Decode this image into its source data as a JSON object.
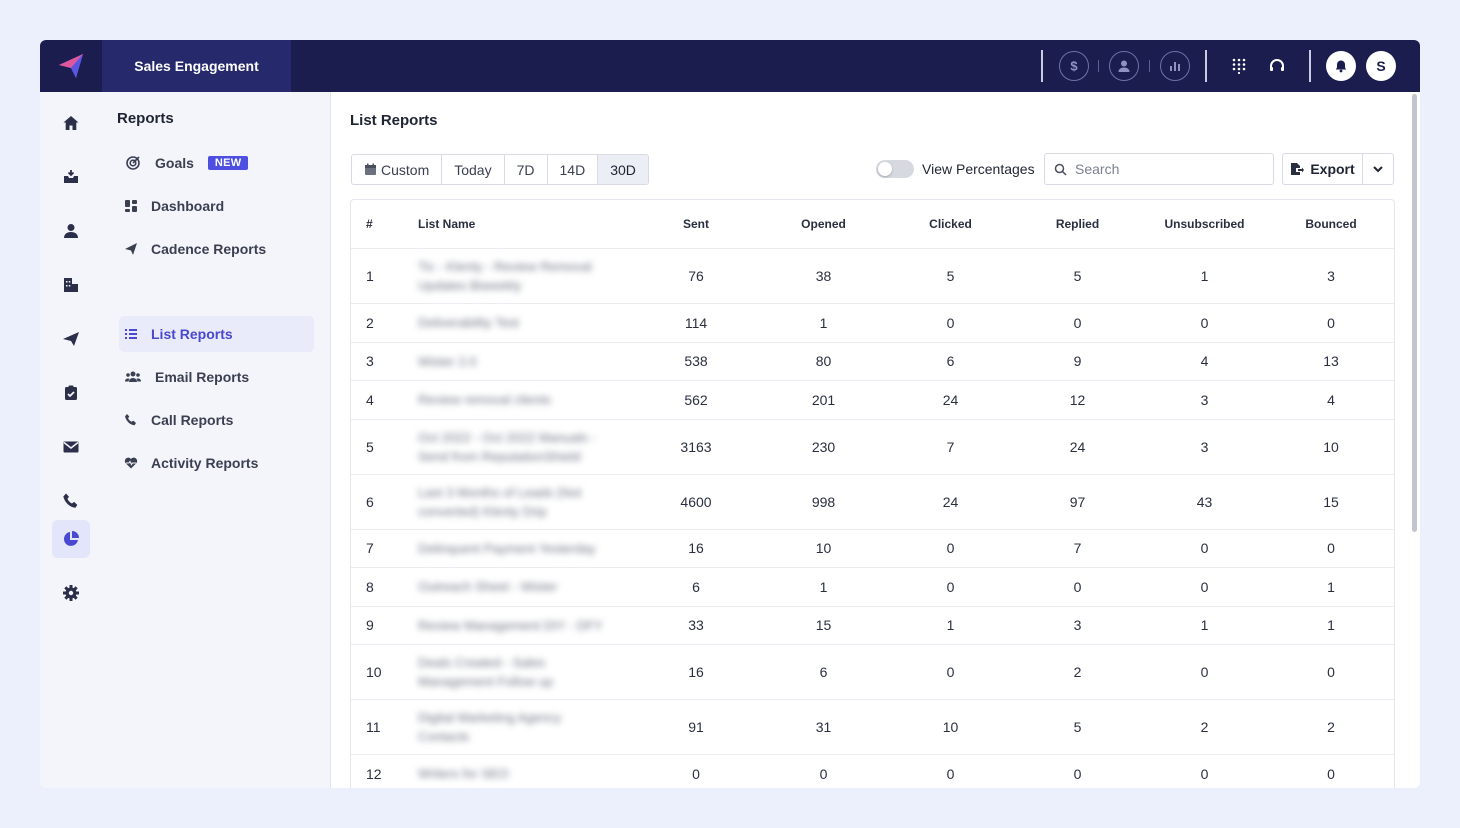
{
  "topbar": {
    "product_name": "Sales Engagement",
    "avatar_initial": "S",
    "icons": [
      "billing-icon",
      "account-icon",
      "analytics-icon",
      "dialpad-icon",
      "support-icon",
      "notifications-icon"
    ]
  },
  "rail": {
    "items": [
      "home-icon",
      "inbox-icon",
      "contacts-icon",
      "accounts-icon",
      "campaigns-icon",
      "tasks-icon",
      "email-icon",
      "calls-icon",
      "reports-icon",
      "settings-icon"
    ],
    "active": "reports-icon"
  },
  "subnav": {
    "title": "Reports",
    "items": [
      {
        "label": "Goals",
        "badge": "NEW",
        "icon": "target-icon"
      },
      {
        "label": "Dashboard",
        "icon": "dashboard-icon"
      },
      {
        "label": "Cadence Reports",
        "icon": "paper-plane-icon"
      },
      {
        "label": "List Reports",
        "icon": "list-icon",
        "active": true
      },
      {
        "label": "Email Reports",
        "icon": "users-icon"
      },
      {
        "label": "Call Reports",
        "icon": "phone-icon"
      },
      {
        "label": "Activity Reports",
        "icon": "heart-pulse-icon"
      }
    ]
  },
  "main": {
    "title": "List Reports",
    "range_buttons": [
      "Custom",
      "Today",
      "7D",
      "14D",
      "30D"
    ],
    "active_range": "30D",
    "toggle_label": "View Percentages",
    "toggle_on": false,
    "search_placeholder": "Search",
    "export_label": "Export"
  },
  "table": {
    "columns": [
      "#",
      "List Name",
      "Sent",
      "Opened",
      "Clicked",
      "Replied",
      "Unsubscribed",
      "Bounced"
    ],
    "rows": [
      {
        "idx": "1",
        "name": [
          "Tic - Klenty - Review Removal",
          "Updates Biweekly"
        ],
        "sent": "76",
        "opened": "38",
        "clicked": "5",
        "replied": "5",
        "unsubscribed": "1",
        "bounced": "3"
      },
      {
        "idx": "2",
        "name": [
          "Deliverability Test"
        ],
        "sent": "114",
        "opened": "1",
        "clicked": "0",
        "replied": "0",
        "unsubscribed": "0",
        "bounced": "0"
      },
      {
        "idx": "3",
        "name": [
          "Wister 2.0"
        ],
        "sent": "538",
        "opened": "80",
        "clicked": "6",
        "replied": "9",
        "unsubscribed": "4",
        "bounced": "13"
      },
      {
        "idx": "4",
        "name": [
          "Review removal clients"
        ],
        "sent": "562",
        "opened": "201",
        "clicked": "24",
        "replied": "12",
        "unsubscribed": "3",
        "bounced": "4"
      },
      {
        "idx": "5",
        "name": [
          "Oct 2022 - Oct 2022 Manuals -",
          "Send from ReputationShield"
        ],
        "sent": "3163",
        "opened": "230",
        "clicked": "7",
        "replied": "24",
        "unsubscribed": "3",
        "bounced": "10"
      },
      {
        "idx": "6",
        "name": [
          "Last 3 Months of Leads (Not",
          "converted) Klenty Drip"
        ],
        "sent": "4600",
        "opened": "998",
        "clicked": "24",
        "replied": "97",
        "unsubscribed": "43",
        "bounced": "15"
      },
      {
        "idx": "7",
        "name": [
          "Delinquent Payment Yesterday"
        ],
        "sent": "16",
        "opened": "10",
        "clicked": "0",
        "replied": "7",
        "unsubscribed": "0",
        "bounced": "0"
      },
      {
        "idx": "8",
        "name": [
          "Outreach Sheet - Wister"
        ],
        "sent": "6",
        "opened": "1",
        "clicked": "0",
        "replied": "0",
        "unsubscribed": "0",
        "bounced": "1"
      },
      {
        "idx": "9",
        "name": [
          "Review Management DIY - DFY"
        ],
        "sent": "33",
        "opened": "15",
        "clicked": "1",
        "replied": "3",
        "unsubscribed": "1",
        "bounced": "1"
      },
      {
        "idx": "10",
        "name": [
          "Deals Created - Sales",
          "Management Follow up"
        ],
        "sent": "16",
        "opened": "6",
        "clicked": "0",
        "replied": "2",
        "unsubscribed": "0",
        "bounced": "0"
      },
      {
        "idx": "11",
        "name": [
          "Digital Marketing Agency",
          "Contacts"
        ],
        "sent": "91",
        "opened": "31",
        "clicked": "10",
        "replied": "5",
        "unsubscribed": "2",
        "bounced": "2"
      },
      {
        "idx": "12",
        "name": [
          "Writers for SEO"
        ],
        "sent": "0",
        "opened": "0",
        "clicked": "0",
        "replied": "0",
        "unsubscribed": "0",
        "bounced": "0"
      }
    ]
  }
}
